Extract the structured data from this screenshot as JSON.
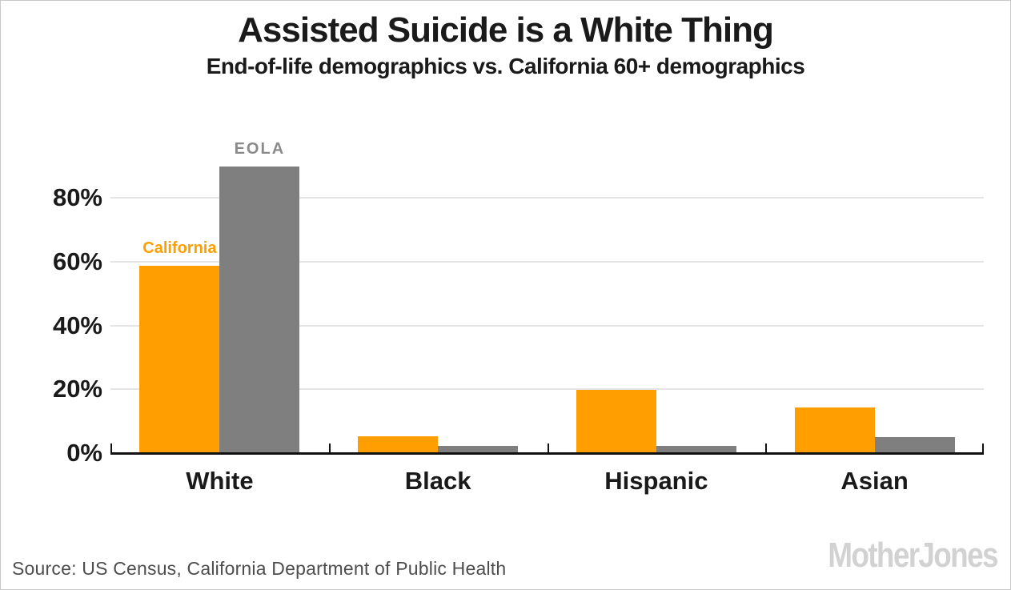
{
  "header": {
    "title": "Assisted Suicide is a White Thing",
    "subtitle": "End-of-life demographics vs. California 60+ demographics"
  },
  "chart_data": {
    "type": "bar",
    "title": "Assisted Suicide is a White Thing",
    "subtitle": "End-of-life demographics vs. California 60+ demographics",
    "categories": [
      "White",
      "Black",
      "Hispanic",
      "Asian"
    ],
    "series": [
      {
        "name": "California",
        "color": "#FF9E00",
        "label_color": "#FF9E00",
        "values": [
          58.6,
          5.3,
          19.8,
          14.2
        ]
      },
      {
        "name": "EOLA",
        "color": "#7F7F7F",
        "label_color": "#8A8A8A",
        "values": [
          89.8,
          2.3,
          2.3,
          4.9
        ]
      }
    ],
    "xlabel": "",
    "ylabel": "",
    "y_ticks": [
      "0%",
      "20%",
      "40%",
      "60%",
      "80%"
    ],
    "y_tick_values": [
      0,
      20,
      40,
      60,
      80
    ],
    "ylim": [
      0,
      100
    ],
    "grid": "horizontal",
    "legend_position": "labels above first group bars"
  },
  "footer": {
    "source": "Source: US Census, California Department of Public Health",
    "logo": "MotherJones"
  },
  "colors": {
    "california_orange": "#FF9E00",
    "eola_gray": "#7F7F7F",
    "gridline": "#e5e5e5",
    "axis": "#111111",
    "text": "#1a1a1a",
    "source_text": "#4d4d4d",
    "logo_gray": "#d2d2d2"
  }
}
